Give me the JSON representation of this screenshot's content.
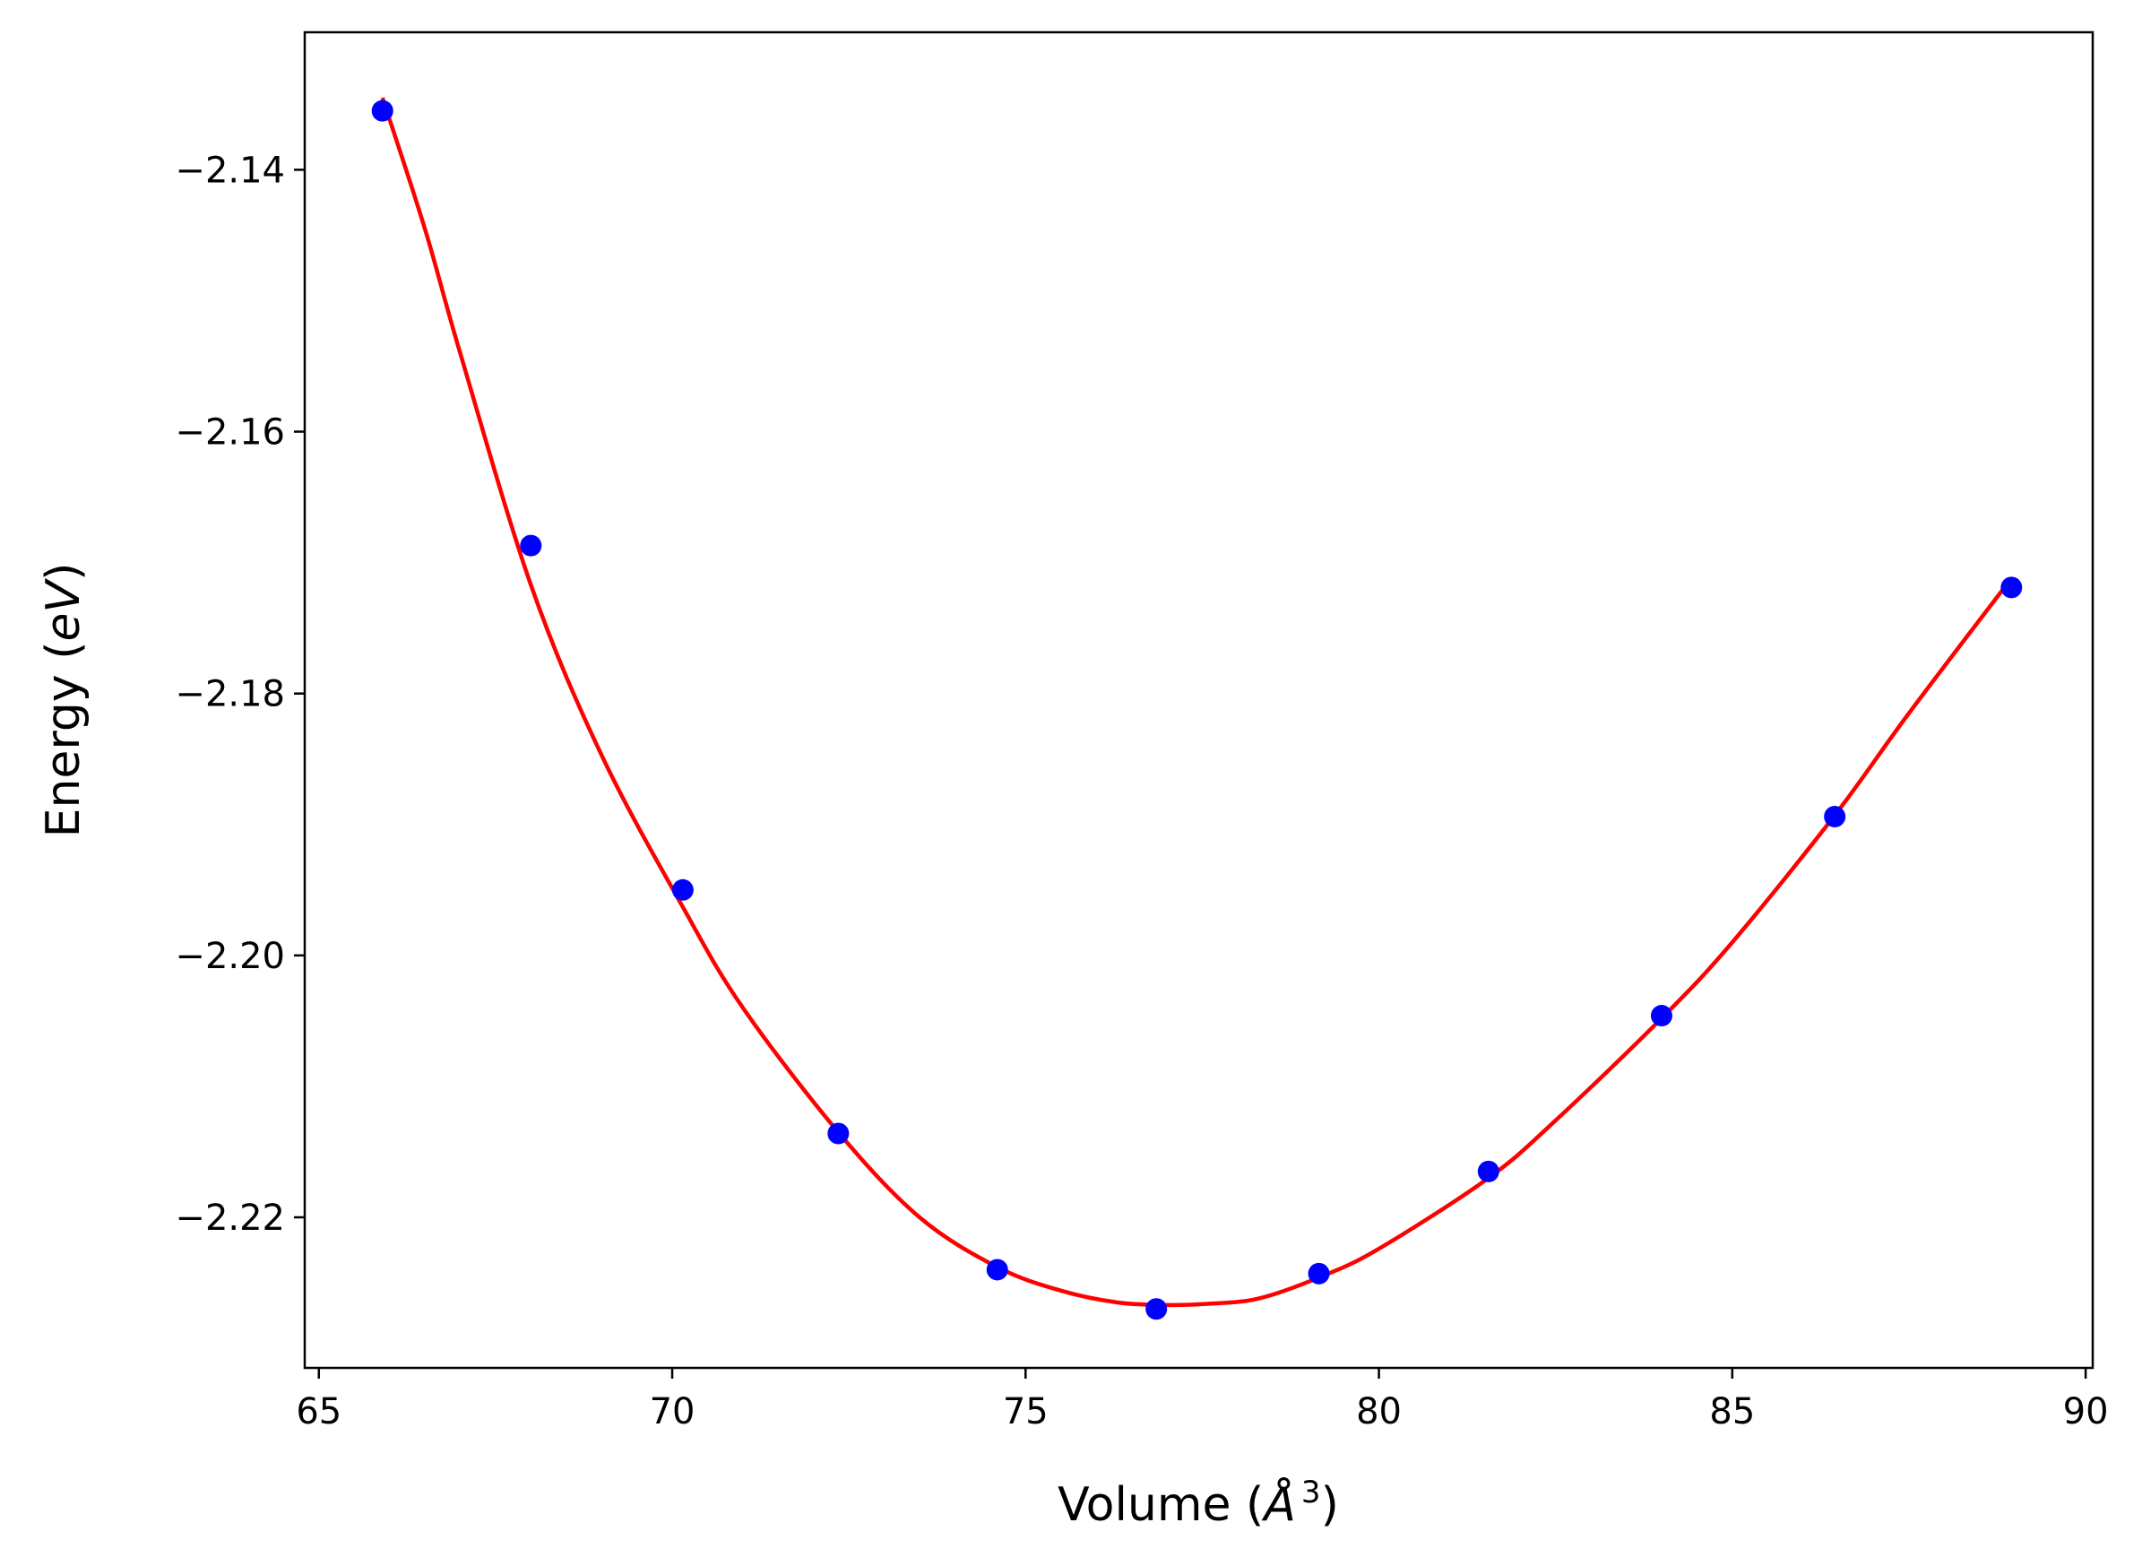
{
  "chart_data": {
    "type": "scatter",
    "title": "",
    "xlabel": "Volume (",
    "xlabel_symbol": "Å",
    "xlabel_exponent": "3",
    "xlabel_close": ")",
    "ylabel": "Energy (",
    "ylabel_unit": "eV",
    "ylabel_close": ")",
    "xlim": [
      64.8,
      90.1
    ],
    "ylim": [
      -2.2315,
      -2.1295
    ],
    "x_ticks": [
      65,
      70,
      75,
      80,
      85,
      90
    ],
    "x_tick_labels": [
      "65",
      "70",
      "75",
      "80",
      "85",
      "90"
    ],
    "y_ticks": [
      -2.14,
      -2.16,
      -2.18,
      -2.2,
      -2.22
    ],
    "y_tick_labels": [
      "−2.14",
      "−2.16",
      "−2.18",
      "−2.20",
      "−2.22"
    ],
    "grid": false,
    "legend": "none",
    "series": [
      {
        "kind": "points",
        "color": "#0000ff",
        "x": [
          65.9,
          68.0,
          70.15,
          72.35,
          74.6,
          76.85,
          79.15,
          81.55,
          84.0,
          86.45,
          88.95
        ],
        "y": [
          -2.1355,
          -2.1687,
          -2.195,
          -2.2136,
          -2.224,
          -2.227,
          -2.2243,
          -2.2165,
          -2.2046,
          -2.1894,
          -2.1719
        ]
      },
      {
        "kind": "fit-curve",
        "color": "#ff0000",
        "x": [
          65.9,
          66.5,
          67.0,
          68.0,
          69.0,
          70.15,
          71.0,
          72.35,
          73.5,
          74.6,
          75.5,
          76.3,
          77.0,
          77.6,
          78.3,
          79.15,
          80.0,
          81.55,
          82.5,
          84.0,
          85.0,
          86.45,
          87.5,
          88.95
        ],
        "y": [
          -2.1345,
          -2.1445,
          -2.154,
          -2.1717,
          -2.1847,
          -2.1963,
          -2.204,
          -2.2135,
          -2.22,
          -2.2238,
          -2.2256,
          -2.2265,
          -2.2267,
          -2.2266,
          -2.2262,
          -2.2246,
          -2.2224,
          -2.217,
          -2.2126,
          -2.2048,
          -2.199,
          -2.1893,
          -2.1815,
          -2.1712
        ]
      }
    ]
  }
}
